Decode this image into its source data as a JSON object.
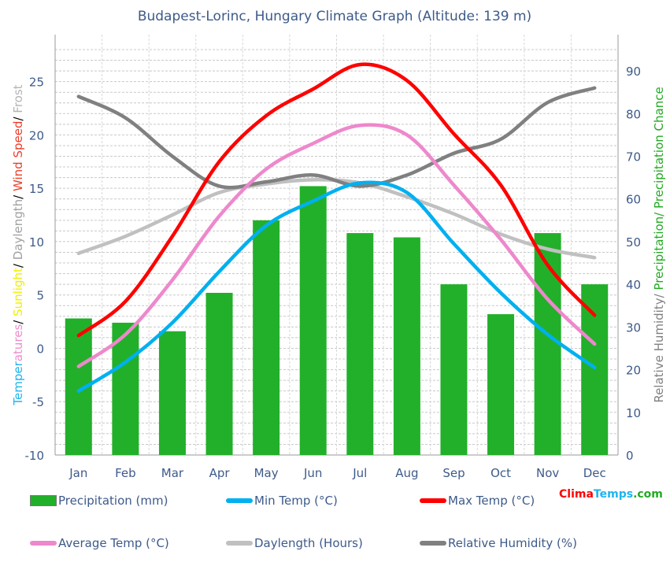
{
  "chart_data": {
    "type": "bar+line",
    "title": "Budapest-Lorinc, Hungary Climate Graph (Altitude: 139 m)",
    "categories": [
      "Jan",
      "Feb",
      "Mar",
      "Apr",
      "May",
      "Jun",
      "Jul",
      "Aug",
      "Sep",
      "Oct",
      "Nov",
      "Dec"
    ],
    "left_axis": {
      "label_parts": [
        {
          "text": "Temper",
          "color": "#1eb4f0"
        },
        {
          "text": "atures",
          "color": "#f08ccc"
        },
        {
          "text": "/ ",
          "color": "#000000"
        },
        {
          "text": "Sunlight",
          "color": "#f0f000"
        },
        {
          "text": "/ ",
          "color": "#000000"
        },
        {
          "text": "Daylength",
          "color": "#a0a0a0"
        },
        {
          "text": "/ ",
          "color": "#000000"
        },
        {
          "text": "Wind Speed",
          "color": "#f03c28"
        },
        {
          "text": "/ ",
          "color": "#000000"
        },
        {
          "text": "Frost",
          "color": "#b4b4b4"
        }
      ],
      "ylim": [
        -10,
        29.4
      ],
      "ticks": [
        -10,
        -5,
        0,
        5,
        10,
        15,
        20,
        25
      ]
    },
    "right_axis": {
      "label_parts": [
        {
          "text": "Relative Humidity/ ",
          "color": "#808080"
        },
        {
          "text": "Precipitation/ Precipitation Chance",
          "color": "#22aa22"
        }
      ],
      "ylim": [
        0,
        98.5
      ],
      "ticks": [
        0,
        10,
        20,
        30,
        40,
        50,
        60,
        70,
        80,
        90
      ]
    },
    "grid": true,
    "legend_position": "bottom",
    "series": [
      {
        "name": "Precipitation (mm)",
        "type": "bar",
        "axis": "right",
        "color": "#22b02a",
        "values": [
          32,
          31,
          29,
          38,
          55,
          63,
          52,
          51,
          40,
          33,
          52,
          40
        ]
      },
      {
        "name": "Min Temp (°C)",
        "type": "line",
        "axis": "left",
        "color": "#00b0f0",
        "values": [
          -4.0,
          -1.3,
          2.4,
          7.2,
          11.5,
          13.8,
          15.5,
          14.6,
          9.8,
          5.2,
          1.3,
          -1.8
        ]
      },
      {
        "name": "Max Temp (°C)",
        "type": "line",
        "axis": "left",
        "color": "#ff0000",
        "values": [
          1.2,
          4.4,
          10.5,
          17.5,
          21.8,
          24.3,
          26.6,
          25.1,
          20.1,
          15.3,
          7.8,
          3.1
        ]
      },
      {
        "name": "Average Temp (°C)",
        "type": "line",
        "axis": "left",
        "color": "#ee88cc",
        "values": [
          -1.7,
          1.3,
          6.4,
          12.4,
          16.8,
          19.2,
          20.9,
          20.0,
          15.3,
          10.2,
          4.6,
          0.4
        ]
      },
      {
        "name": "Daylength (Hours)",
        "type": "line",
        "axis": "left",
        "color": "#c0c0c0",
        "values": [
          8.9,
          10.5,
          12.5,
          14.6,
          15.4,
          15.8,
          15.5,
          14.2,
          12.6,
          10.7,
          9.3,
          8.5
        ]
      },
      {
        "name": "Relative Humidity (%)",
        "type": "line",
        "axis": "right",
        "color": "#808080",
        "values": [
          84,
          79,
          70,
          63,
          64,
          65.6,
          63,
          65.6,
          70.7,
          74,
          82.6,
          86
        ]
      }
    ]
  },
  "logo": {
    "parts": [
      {
        "text": "Clima",
        "color": "#ff0000"
      },
      {
        "text": "Temps",
        "color": "#1eb4f0"
      },
      {
        "text": ".com",
        "color": "#22aa22"
      }
    ]
  }
}
